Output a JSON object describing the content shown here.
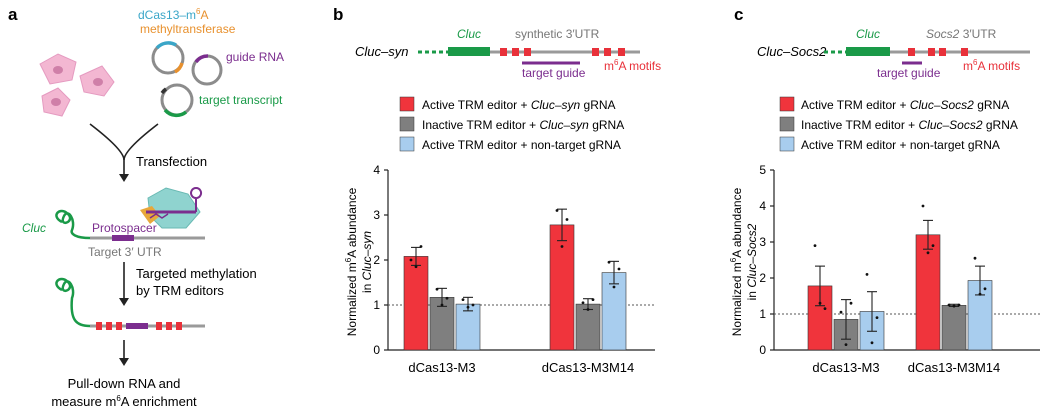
{
  "panel_a": {
    "letter": "a",
    "construct": {
      "prefix": "dCas13–m",
      "sup": "6",
      "suffix": "A"
    },
    "methyltransferase": "methyltransferase",
    "guide_rna": "guide RNA",
    "target_transcript": "target transcript",
    "transfection": "Transfection",
    "cluc": "Cluc",
    "protospacer": "Protospacer",
    "target_utr": "Target 3′ UTR",
    "step2_line1": "Targeted methylation",
    "step2_line2": "by TRM editors",
    "step3_line1": "Pull-down RNA and",
    "step3_line2": {
      "prefix": "measure m",
      "sup": "6",
      "suffix": "A enrichment"
    }
  },
  "panel_b": {
    "letter": "b",
    "construct_label": "Cluc–syn",
    "gene_label": "Cluc",
    "utr_label": "synthetic 3′UTR",
    "guide_label": "target guide",
    "motif_label": {
      "prefix": "m",
      "sup": "6",
      "suffix": "A motifs"
    },
    "legend": [
      {
        "text_pre": "Active TRM editor + ",
        "text_it": "Cluc–syn",
        "text_post": " gRNA"
      },
      {
        "text_pre": "Inactive TRM editor + ",
        "text_it": "Cluc–syn",
        "text_post": " gRNA"
      },
      {
        "text_pre": "Active TRM editor + non-target gRNA",
        "text_it": "",
        "text_post": ""
      }
    ],
    "ylabel_line1": {
      "prefix": "Normalized m",
      "sup": "6",
      "suffix": "A abundance"
    },
    "ylabel_line2": {
      "prefix": "in ",
      "italic": "Cluc–syn"
    }
  },
  "panel_c": {
    "letter": "c",
    "construct_label": "Cluc–Socs2",
    "gene_label": "Cluc",
    "utr_label_it": "Socs2",
    "utr_label": " 3′UTR",
    "guide_label": "target guide",
    "motif_label": {
      "prefix": "m",
      "sup": "6",
      "suffix": "A motifs"
    },
    "legend": [
      {
        "text_pre": "Active TRM editor + ",
        "text_it": "Cluc–Socs2",
        "text_post": " gRNA"
      },
      {
        "text_pre": "Inactive TRM editor + ",
        "text_it": "Cluc–Socs2",
        "text_post": " gRNA"
      },
      {
        "text_pre": "Active TRM editor + non-target gRNA",
        "text_it": "",
        "text_post": ""
      }
    ],
    "ylabel_line1": {
      "prefix": "Normalized m",
      "sup": "6",
      "suffix": "A abundance"
    },
    "ylabel_line2": {
      "prefix": "in ",
      "italic": "Cluc–Socs2"
    }
  },
  "colors": {
    "active": "#f0343c",
    "inactive": "#7f7f7f",
    "nontarget": "#a8cdee",
    "gene_green": "#1a9a48",
    "purple": "#7b2d8e",
    "motif_red": "#e8313a",
    "utr_grey": "#9a9a9a"
  },
  "chart_data": [
    {
      "type": "bar",
      "panel": "b",
      "categories": [
        "dCas13-M3",
        "dCas13-M3M14"
      ],
      "ylim": [
        0,
        4
      ],
      "yticks": [
        "0",
        "1",
        "2",
        "3",
        "4"
      ],
      "reference_line": 1,
      "series": [
        {
          "name": "Active TRM editor + Cluc–syn gRNA",
          "values": [
            2.08,
            2.78
          ],
          "errors": [
            0.2,
            0.35
          ],
          "points": [
            [
              2.0,
              1.85,
              2.3
            ],
            [
              3.1,
              2.3,
              2.9
            ]
          ]
        },
        {
          "name": "Inactive TRM editor + Cluc–syn gRNA",
          "values": [
            1.17,
            1.02
          ],
          "errors": [
            0.2,
            0.12
          ],
          "points": [
            [
              1.35,
              1.0,
              1.15
            ],
            [
              1.05,
              0.9,
              1.12
            ]
          ]
        },
        {
          "name": "Active TRM editor + non-target gRNA",
          "values": [
            1.02,
            1.72
          ],
          "errors": [
            0.15,
            0.25
          ],
          "points": [
            [
              1.12,
              0.95,
              1.0
            ],
            [
              1.95,
              1.4,
              1.8
            ]
          ]
        }
      ]
    },
    {
      "type": "bar",
      "panel": "c",
      "categories": [
        "dCas13-M3",
        "dCas13-M3M14"
      ],
      "ylim": [
        0,
        5
      ],
      "yticks": [
        "0",
        "1",
        "2",
        "3",
        "4",
        "5"
      ],
      "reference_line": 1,
      "series": [
        {
          "name": "Active TRM editor + Cluc–Socs2 gRNA",
          "values": [
            1.78,
            3.2
          ],
          "errors": [
            0.55,
            0.4
          ],
          "points": [
            [
              2.9,
              1.3,
              1.15
            ],
            [
              4.0,
              2.7,
              2.9
            ]
          ]
        },
        {
          "name": "Inactive TRM editor + Cluc–Socs2 gRNA",
          "values": [
            0.85,
            1.24
          ],
          "errors": [
            0.55,
            0.03
          ],
          "points": [
            [
              1.05,
              0.15,
              1.3
            ],
            [
              1.25,
              1.22,
              1.25
            ]
          ]
        },
        {
          "name": "Active TRM editor + non-target gRNA",
          "values": [
            1.07,
            1.93
          ],
          "errors": [
            0.55,
            0.4
          ],
          "points": [
            [
              2.1,
              0.2,
              0.9
            ],
            [
              2.55,
              1.55,
              1.7
            ]
          ]
        }
      ]
    }
  ]
}
